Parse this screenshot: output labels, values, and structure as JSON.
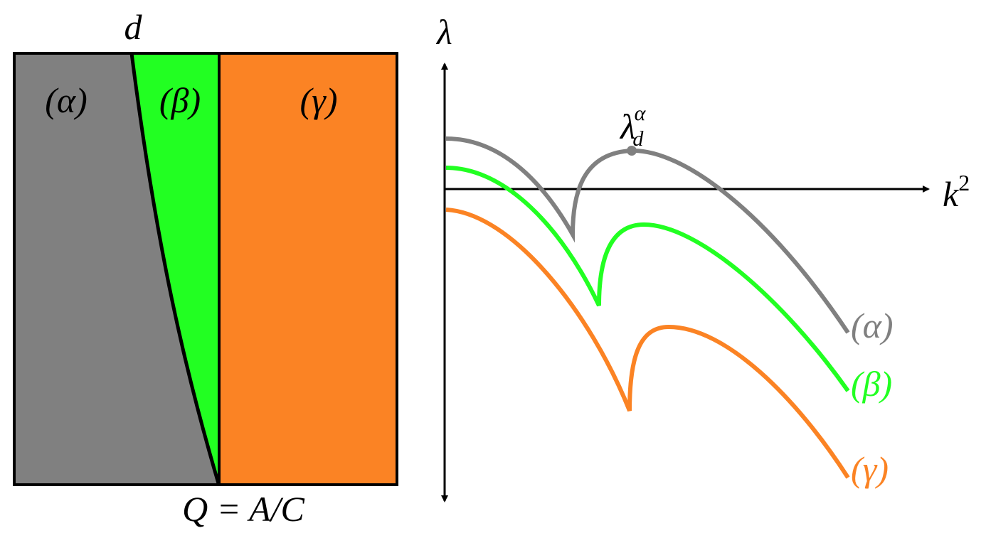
{
  "left_panel": {
    "top_label": "d",
    "regions": [
      "(α)",
      "(β)",
      "(γ)"
    ],
    "x_label": "Q = A/C"
  },
  "right_panel": {
    "y_label": "λ",
    "x_label": {
      "base": "k",
      "sup": "2"
    },
    "point_label": {
      "base": "λ",
      "sub": "d",
      "sup": "α"
    },
    "curves": [
      "(α)",
      "(β)",
      "(γ)"
    ]
  }
}
